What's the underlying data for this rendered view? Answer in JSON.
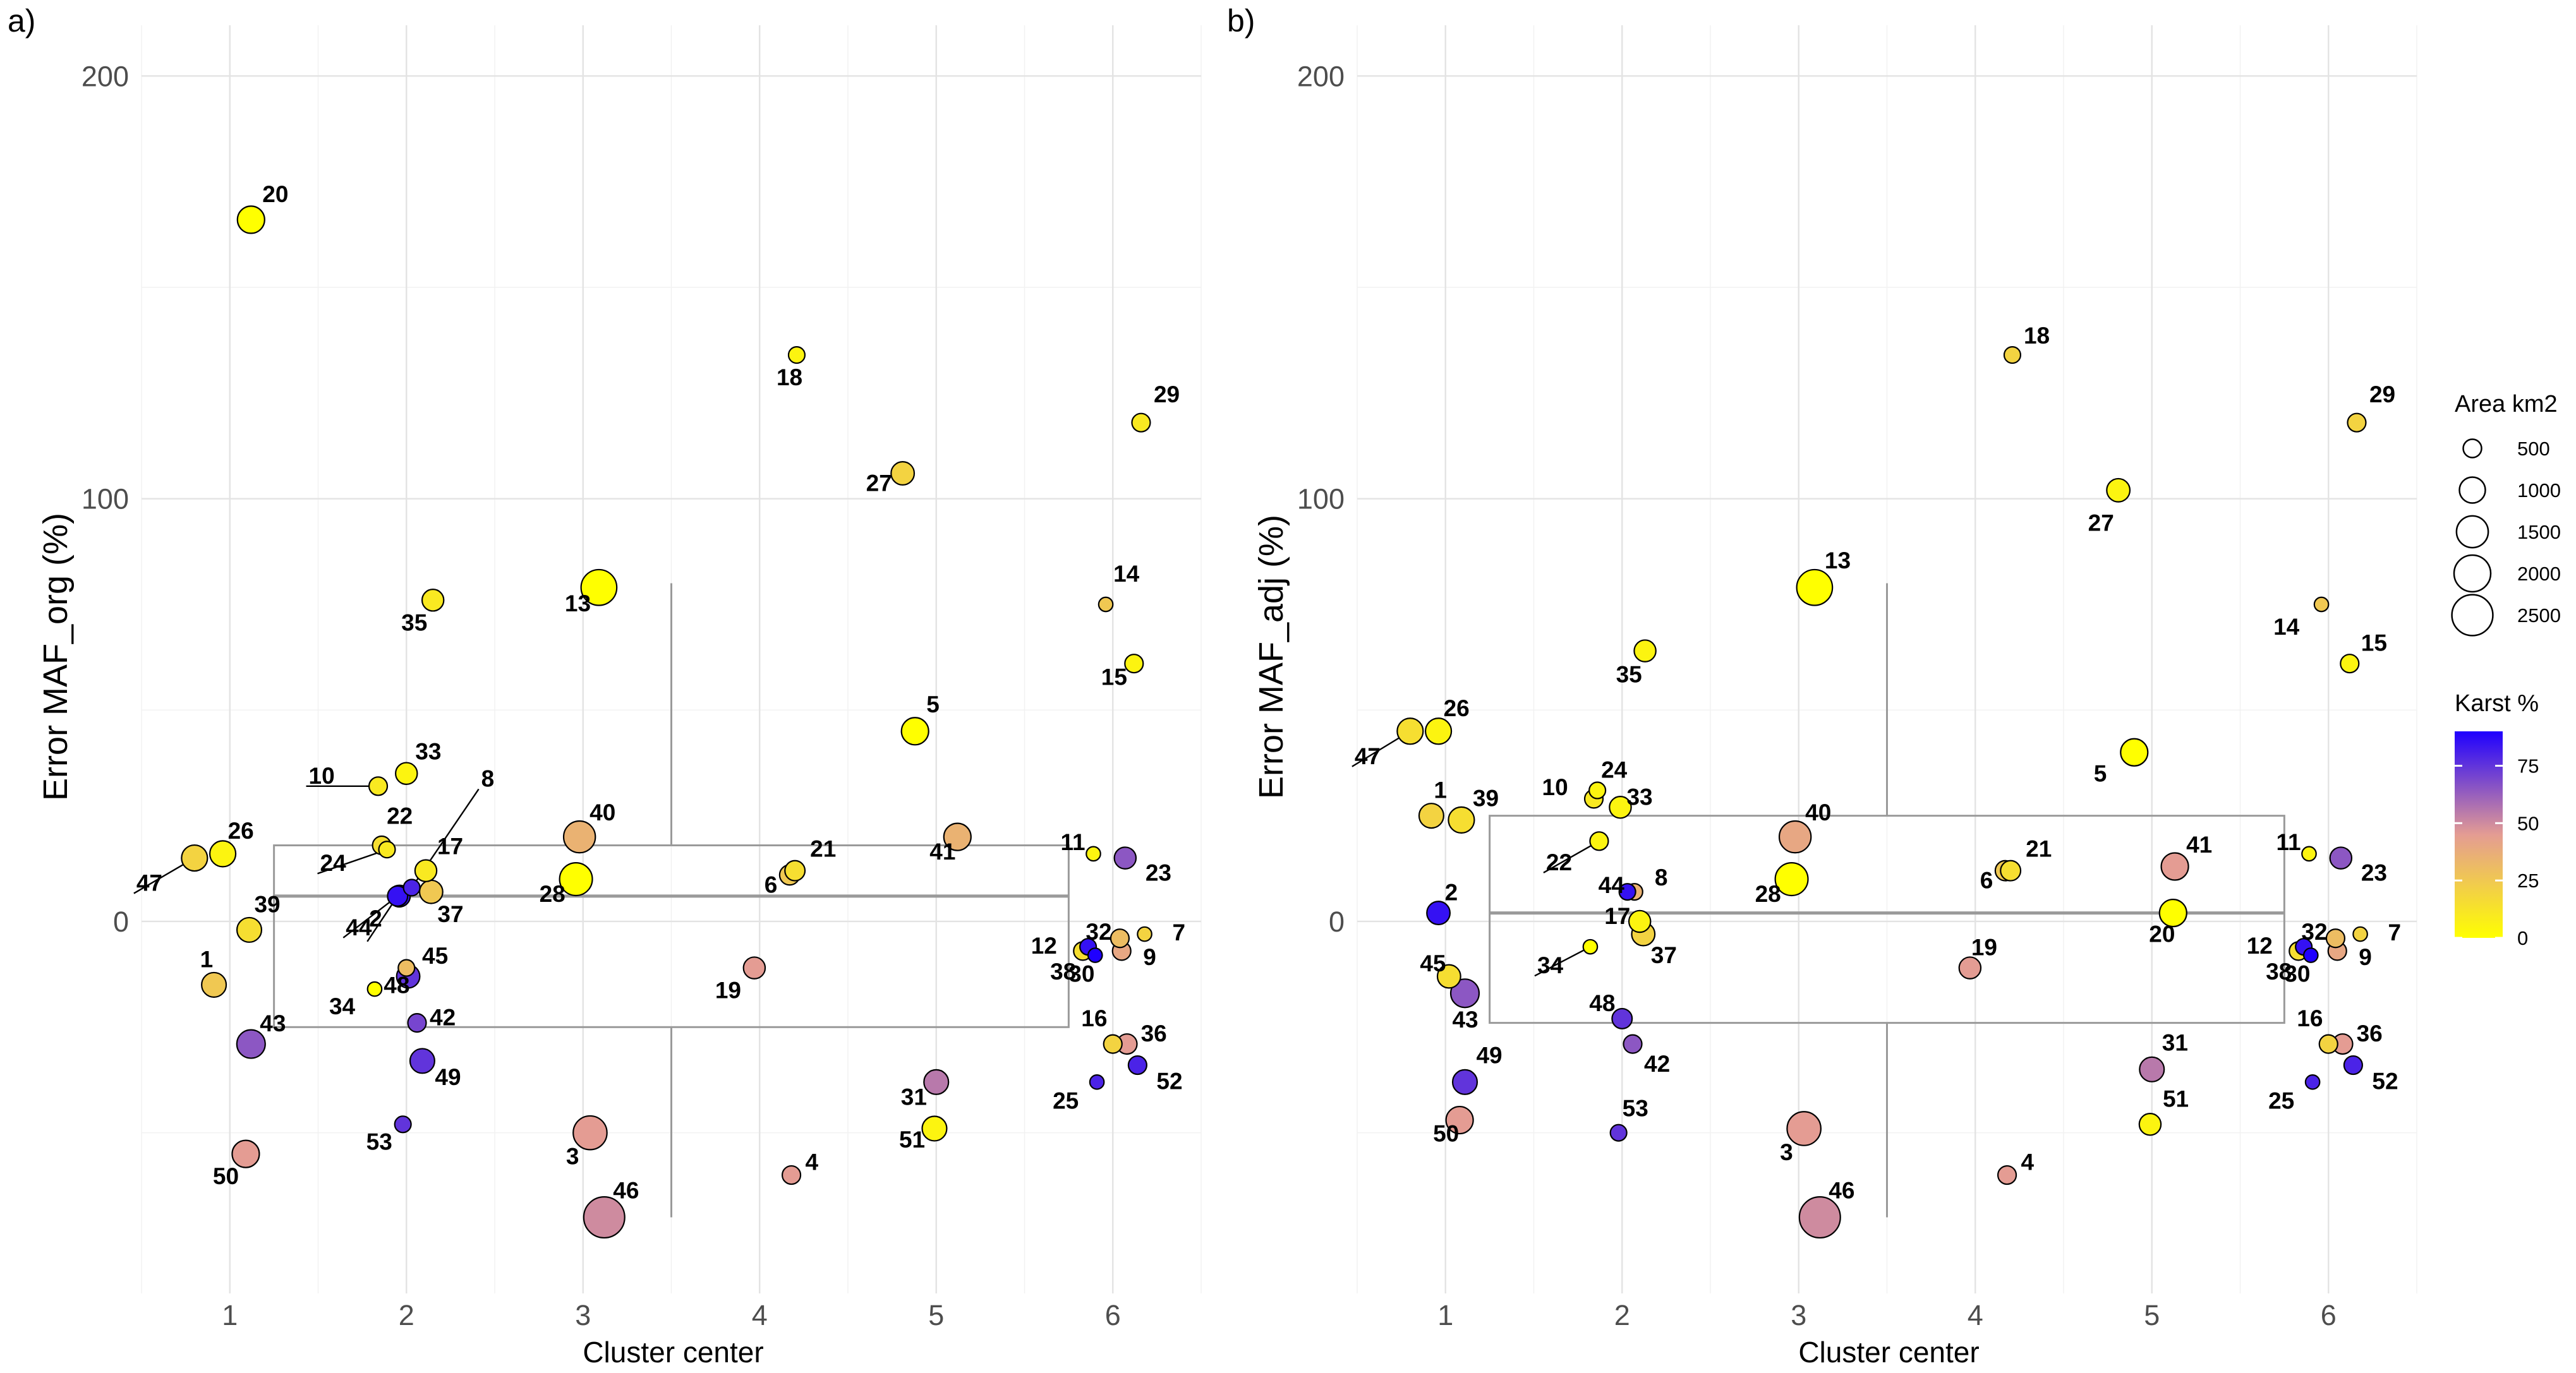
{
  "chart_data": [
    {
      "type": "scatter",
      "panel_tag": "a)",
      "xlabel": "Cluster center",
      "ylabel": "Error MAF_org (%)",
      "xlim": [
        0.5,
        6.5
      ],
      "ylim": [
        -88,
        212
      ],
      "xticks": [
        1,
        2,
        3,
        4,
        5,
        6
      ],
      "yticks": [
        0,
        100,
        200
      ],
      "boxplot": {
        "x": 3.5,
        "q1": -25,
        "median": 6,
        "q3": 18,
        "whisker_low": -70,
        "whisker_high": 80,
        "x_from": 1.25,
        "x_to": 5.75
      },
      "points": [
        {
          "id": "1",
          "x": 0.91,
          "y": -15,
          "area": 900,
          "karst": 25
        },
        {
          "id": "2",
          "x": 1.96,
          "y": 6,
          "area": 700,
          "karst": 85
        },
        {
          "id": "3",
          "x": 3.04,
          "y": -50,
          "area": 1700,
          "karst": 45
        },
        {
          "id": "4",
          "x": 4.18,
          "y": -60,
          "area": 500,
          "karst": 45
        },
        {
          "id": "5",
          "x": 4.88,
          "y": 45,
          "area": 1100,
          "karst": 0
        },
        {
          "id": "6",
          "x": 4.17,
          "y": 11,
          "area": 600,
          "karst": 25
        },
        {
          "id": "7",
          "x": 6.18,
          "y": -3,
          "area": 300,
          "karst": 20
        },
        {
          "id": "8",
          "x": 2.03,
          "y": 8,
          "area": 400,
          "karst": 80
        },
        {
          "id": "9",
          "x": 6.05,
          "y": -7,
          "area": 500,
          "karst": 40
        },
        {
          "id": "10",
          "x": 1.84,
          "y": 32,
          "area": 500,
          "karst": 10
        },
        {
          "id": "11",
          "x": 5.89,
          "y": 16,
          "area": 300,
          "karst": 5
        },
        {
          "id": "12",
          "x": 5.83,
          "y": -7,
          "area": 500,
          "karst": 15
        },
        {
          "id": "13",
          "x": 3.09,
          "y": 79,
          "area": 1900,
          "karst": 0
        },
        {
          "id": "14",
          "x": 5.96,
          "y": 75,
          "area": 300,
          "karst": 25
        },
        {
          "id": "15",
          "x": 6.12,
          "y": 61,
          "area": 500,
          "karst": 5
        },
        {
          "id": "16",
          "x": 6.0,
          "y": -29,
          "area": 500,
          "karst": 20
        },
        {
          "id": "17",
          "x": 2.11,
          "y": 12,
          "area": 700,
          "karst": 10
        },
        {
          "id": "18",
          "x": 4.21,
          "y": 134,
          "area": 400,
          "karst": 5
        },
        {
          "id": "19",
          "x": 3.97,
          "y": -11,
          "area": 700,
          "karst": 45
        },
        {
          "id": "20",
          "x": 1.12,
          "y": 166,
          "area": 1100,
          "karst": 0
        },
        {
          "id": "21",
          "x": 4.2,
          "y": 12,
          "area": 600,
          "karst": 15
        },
        {
          "id": "22",
          "x": 1.86,
          "y": 18,
          "area": 500,
          "karst": 15
        },
        {
          "id": "23",
          "x": 6.07,
          "y": 15,
          "area": 700,
          "karst": 65
        },
        {
          "id": "24",
          "x": 1.89,
          "y": 17,
          "area": 400,
          "karst": 10
        },
        {
          "id": "25",
          "x": 5.91,
          "y": -38,
          "area": 300,
          "karst": 80
        },
        {
          "id": "26",
          "x": 0.96,
          "y": 16,
          "area": 1000,
          "karst": 5
        },
        {
          "id": "27",
          "x": 4.81,
          "y": 106,
          "area": 800,
          "karst": 20
        },
        {
          "id": "28",
          "x": 2.96,
          "y": 10,
          "area": 1600,
          "karst": 0
        },
        {
          "id": "29",
          "x": 6.16,
          "y": 118,
          "area": 500,
          "karst": 10
        },
        {
          "id": "30",
          "x": 5.9,
          "y": -8,
          "area": 300,
          "karst": 95
        },
        {
          "id": "31",
          "x": 5.0,
          "y": -38,
          "area": 900,
          "karst": 55
        },
        {
          "id": "32",
          "x": 6.04,
          "y": -4,
          "area": 500,
          "karst": 30
        },
        {
          "id": "33",
          "x": 2.0,
          "y": 35,
          "area": 700,
          "karst": 5
        },
        {
          "id": "34",
          "x": 1.82,
          "y": -16,
          "area": 300,
          "karst": 0
        },
        {
          "id": "35",
          "x": 2.15,
          "y": 76,
          "area": 700,
          "karst": 10
        },
        {
          "id": "36",
          "x": 6.08,
          "y": -29,
          "area": 600,
          "karst": 45
        },
        {
          "id": "37",
          "x": 2.14,
          "y": 7,
          "area": 800,
          "karst": 25
        },
        {
          "id": "38",
          "x": 5.86,
          "y": -6,
          "area": 400,
          "karst": 85
        },
        {
          "id": "39",
          "x": 1.11,
          "y": -2,
          "area": 900,
          "karst": 15
        },
        {
          "id": "40",
          "x": 2.98,
          "y": 20,
          "area": 1500,
          "karst": 35
        },
        {
          "id": "41",
          "x": 5.12,
          "y": 20,
          "area": 1100,
          "karst": 35
        },
        {
          "id": "42",
          "x": 2.06,
          "y": -24,
          "area": 500,
          "karst": 70
        },
        {
          "id": "43",
          "x": 1.12,
          "y": -29,
          "area": 1200,
          "karst": 65
        },
        {
          "id": "44",
          "x": 1.95,
          "y": 6,
          "area": 600,
          "karst": 85
        },
        {
          "id": "45",
          "x": 2.01,
          "y": -13,
          "area": 800,
          "karst": 75
        },
        {
          "id": "46",
          "x": 3.12,
          "y": -70,
          "area": 2500,
          "karst": 50
        },
        {
          "id": "47",
          "x": 0.8,
          "y": 15,
          "area": 1000,
          "karst": 20
        },
        {
          "id": "48",
          "x": 2.0,
          "y": -11,
          "area": 400,
          "karst": 30
        },
        {
          "id": "49",
          "x": 2.09,
          "y": -33,
          "area": 900,
          "karst": 75
        },
        {
          "id": "50",
          "x": 1.09,
          "y": -55,
          "area": 1100,
          "karst": 45
        },
        {
          "id": "51",
          "x": 4.99,
          "y": -49,
          "area": 900,
          "karst": 5
        },
        {
          "id": "52",
          "x": 6.14,
          "y": -34,
          "area": 500,
          "karst": 80
        },
        {
          "id": "53",
          "x": 1.98,
          "y": -48,
          "area": 400,
          "karst": 75
        }
      ]
    },
    {
      "type": "scatter",
      "panel_tag": "b)",
      "xlabel": "Cluster center",
      "ylabel": "Error MAF_adj (%)",
      "xlim": [
        0.5,
        6.5
      ],
      "ylim": [
        -88,
        212
      ],
      "xticks": [
        1,
        2,
        3,
        4,
        5,
        6
      ],
      "yticks": [
        0,
        100,
        200
      ],
      "boxplot": {
        "x": 3.5,
        "q1": -24,
        "median": 2,
        "q3": 25,
        "whisker_low": -70,
        "whisker_high": 80,
        "x_from": 1.25,
        "x_to": 5.75
      },
      "points": [
        {
          "id": "1",
          "x": 0.92,
          "y": 25,
          "area": 900,
          "karst": 20
        },
        {
          "id": "2",
          "x": 0.96,
          "y": 2,
          "area": 800,
          "karst": 85
        },
        {
          "id": "3",
          "x": 3.03,
          "y": -49,
          "area": 1700,
          "karst": 45
        },
        {
          "id": "4",
          "x": 4.18,
          "y": -60,
          "area": 500,
          "karst": 45
        },
        {
          "id": "5",
          "x": 4.9,
          "y": 40,
          "area": 1100,
          "karst": 0
        },
        {
          "id": "6",
          "x": 4.17,
          "y": 12,
          "area": 600,
          "karst": 25
        },
        {
          "id": "7",
          "x": 6.18,
          "y": -3,
          "area": 300,
          "karst": 20
        },
        {
          "id": "8",
          "x": 2.07,
          "y": 7,
          "area": 400,
          "karst": 35
        },
        {
          "id": "9",
          "x": 6.05,
          "y": -7,
          "area": 500,
          "karst": 40
        },
        {
          "id": "10",
          "x": 1.84,
          "y": 29,
          "area": 500,
          "karst": 10
        },
        {
          "id": "11",
          "x": 5.89,
          "y": 16,
          "area": 300,
          "karst": 5
        },
        {
          "id": "12",
          "x": 5.83,
          "y": -7,
          "area": 500,
          "karst": 15
        },
        {
          "id": "13",
          "x": 3.09,
          "y": 79,
          "area": 1900,
          "karst": 0
        },
        {
          "id": "14",
          "x": 5.96,
          "y": 75,
          "area": 300,
          "karst": 25
        },
        {
          "id": "15",
          "x": 6.12,
          "y": 61,
          "area": 500,
          "karst": 5
        },
        {
          "id": "16",
          "x": 6.0,
          "y": -29,
          "area": 500,
          "karst": 20
        },
        {
          "id": "17",
          "x": 2.1,
          "y": 0,
          "area": 700,
          "karst": 5
        },
        {
          "id": "18",
          "x": 4.21,
          "y": 134,
          "area": 400,
          "karst": 20
        },
        {
          "id": "19",
          "x": 3.97,
          "y": -11,
          "area": 700,
          "karst": 45
        },
        {
          "id": "20",
          "x": 5.12,
          "y": 2,
          "area": 1100,
          "karst": 0
        },
        {
          "id": "21",
          "x": 4.2,
          "y": 12,
          "area": 600,
          "karst": 15
        },
        {
          "id": "22",
          "x": 1.87,
          "y": 19,
          "area": 500,
          "karst": 5
        },
        {
          "id": "23",
          "x": 6.07,
          "y": 15,
          "area": 700,
          "karst": 65
        },
        {
          "id": "24",
          "x": 1.86,
          "y": 31,
          "area": 400,
          "karst": 5
        },
        {
          "id": "25",
          "x": 5.91,
          "y": -38,
          "area": 300,
          "karst": 80
        },
        {
          "id": "26",
          "x": 0.96,
          "y": 45,
          "area": 1000,
          "karst": 5
        },
        {
          "id": "27",
          "x": 4.81,
          "y": 102,
          "area": 800,
          "karst": 5
        },
        {
          "id": "28",
          "x": 2.96,
          "y": 10,
          "area": 1600,
          "karst": 0
        },
        {
          "id": "29",
          "x": 6.16,
          "y": 118,
          "area": 500,
          "karst": 20
        },
        {
          "id": "30",
          "x": 5.9,
          "y": -8,
          "area": 300,
          "karst": 95
        },
        {
          "id": "31",
          "x": 5.0,
          "y": -35,
          "area": 900,
          "karst": 55
        },
        {
          "id": "32",
          "x": 6.04,
          "y": -4,
          "area": 500,
          "karst": 30
        },
        {
          "id": "33",
          "x": 1.99,
          "y": 27,
          "area": 700,
          "karst": 5
        },
        {
          "id": "34",
          "x": 1.82,
          "y": -6,
          "area": 300,
          "karst": 0
        },
        {
          "id": "35",
          "x": 2.13,
          "y": 64,
          "area": 700,
          "karst": 5
        },
        {
          "id": "36",
          "x": 6.08,
          "y": -29,
          "area": 600,
          "karst": 45
        },
        {
          "id": "37",
          "x": 2.12,
          "y": -3,
          "area": 800,
          "karst": 20
        },
        {
          "id": "38",
          "x": 5.86,
          "y": -6,
          "area": 400,
          "karst": 85
        },
        {
          "id": "39",
          "x": 1.09,
          "y": 24,
          "area": 1000,
          "karst": 15
        },
        {
          "id": "40",
          "x": 2.98,
          "y": 20,
          "area": 1500,
          "karst": 40
        },
        {
          "id": "41",
          "x": 5.13,
          "y": 13,
          "area": 1100,
          "karst": 45
        },
        {
          "id": "42",
          "x": 2.06,
          "y": -29,
          "area": 500,
          "karst": 65
        },
        {
          "id": "43",
          "x": 1.11,
          "y": -17,
          "area": 1200,
          "karst": 65
        },
        {
          "id": "44",
          "x": 2.03,
          "y": 7,
          "area": 400,
          "karst": 85
        },
        {
          "id": "45",
          "x": 1.02,
          "y": -13,
          "area": 800,
          "karst": 15
        },
        {
          "id": "46",
          "x": 3.12,
          "y": -70,
          "area": 2500,
          "karst": 50
        },
        {
          "id": "47",
          "x": 0.8,
          "y": 45,
          "area": 1000,
          "karst": 15
        },
        {
          "id": "48",
          "x": 2.0,
          "y": -23,
          "area": 600,
          "karst": 75
        },
        {
          "id": "49",
          "x": 1.11,
          "y": -38,
          "area": 900,
          "karst": 75
        },
        {
          "id": "50",
          "x": 1.08,
          "y": -47,
          "area": 1100,
          "karst": 45
        },
        {
          "id": "51",
          "x": 4.99,
          "y": -48,
          "area": 700,
          "karst": 5
        },
        {
          "id": "52",
          "x": 6.14,
          "y": -34,
          "area": 500,
          "karst": 80
        },
        {
          "id": "53",
          "x": 1.98,
          "y": -50,
          "area": 400,
          "karst": 75
        }
      ]
    }
  ],
  "legend": {
    "size_title": "Area km2",
    "size_breaks": [
      500,
      1000,
      1500,
      2000,
      2500
    ],
    "size_labels": [
      "500",
      "1000",
      "1500",
      "2000",
      "2500"
    ],
    "color_title": "Karst %",
    "color_breaks": [
      0,
      25,
      50,
      75
    ],
    "color_labels": [
      "0",
      "25",
      "50",
      "75"
    ],
    "color_range": [
      0,
      90
    ],
    "color_low": "#ffff00",
    "color_mid": "#e49c93",
    "color_high": "#1f00ff"
  }
}
